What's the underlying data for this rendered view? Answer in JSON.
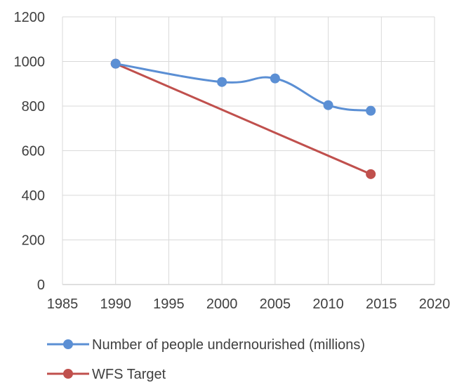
{
  "chart_data": {
    "type": "scatter",
    "title": "",
    "xlabel": "",
    "ylabel": "",
    "xlim": [
      1985,
      2020
    ],
    "ylim": [
      0,
      1200
    ],
    "x_ticks": [
      "1985",
      "1990",
      "1995",
      "2000",
      "2005",
      "2010",
      "2015",
      "2020"
    ],
    "y_ticks": [
      "0",
      "200",
      "400",
      "600",
      "800",
      "1000",
      "1200"
    ],
    "grid": "vertical and horizontal",
    "legend_position": "bottom",
    "series": [
      {
        "name": "Number of people undernourished (millions)",
        "line_style": "smooth",
        "color": "#5b8fd4",
        "x": [
          1990,
          2000,
          2005,
          2010,
          2014
        ],
        "y": [
          990,
          908,
          924,
          804,
          779
        ]
      },
      {
        "name": "WFS Target",
        "line_style": "straight",
        "color": "#c0504d",
        "x": [
          1990,
          2014
        ],
        "y": [
          990,
          495
        ]
      }
    ]
  }
}
